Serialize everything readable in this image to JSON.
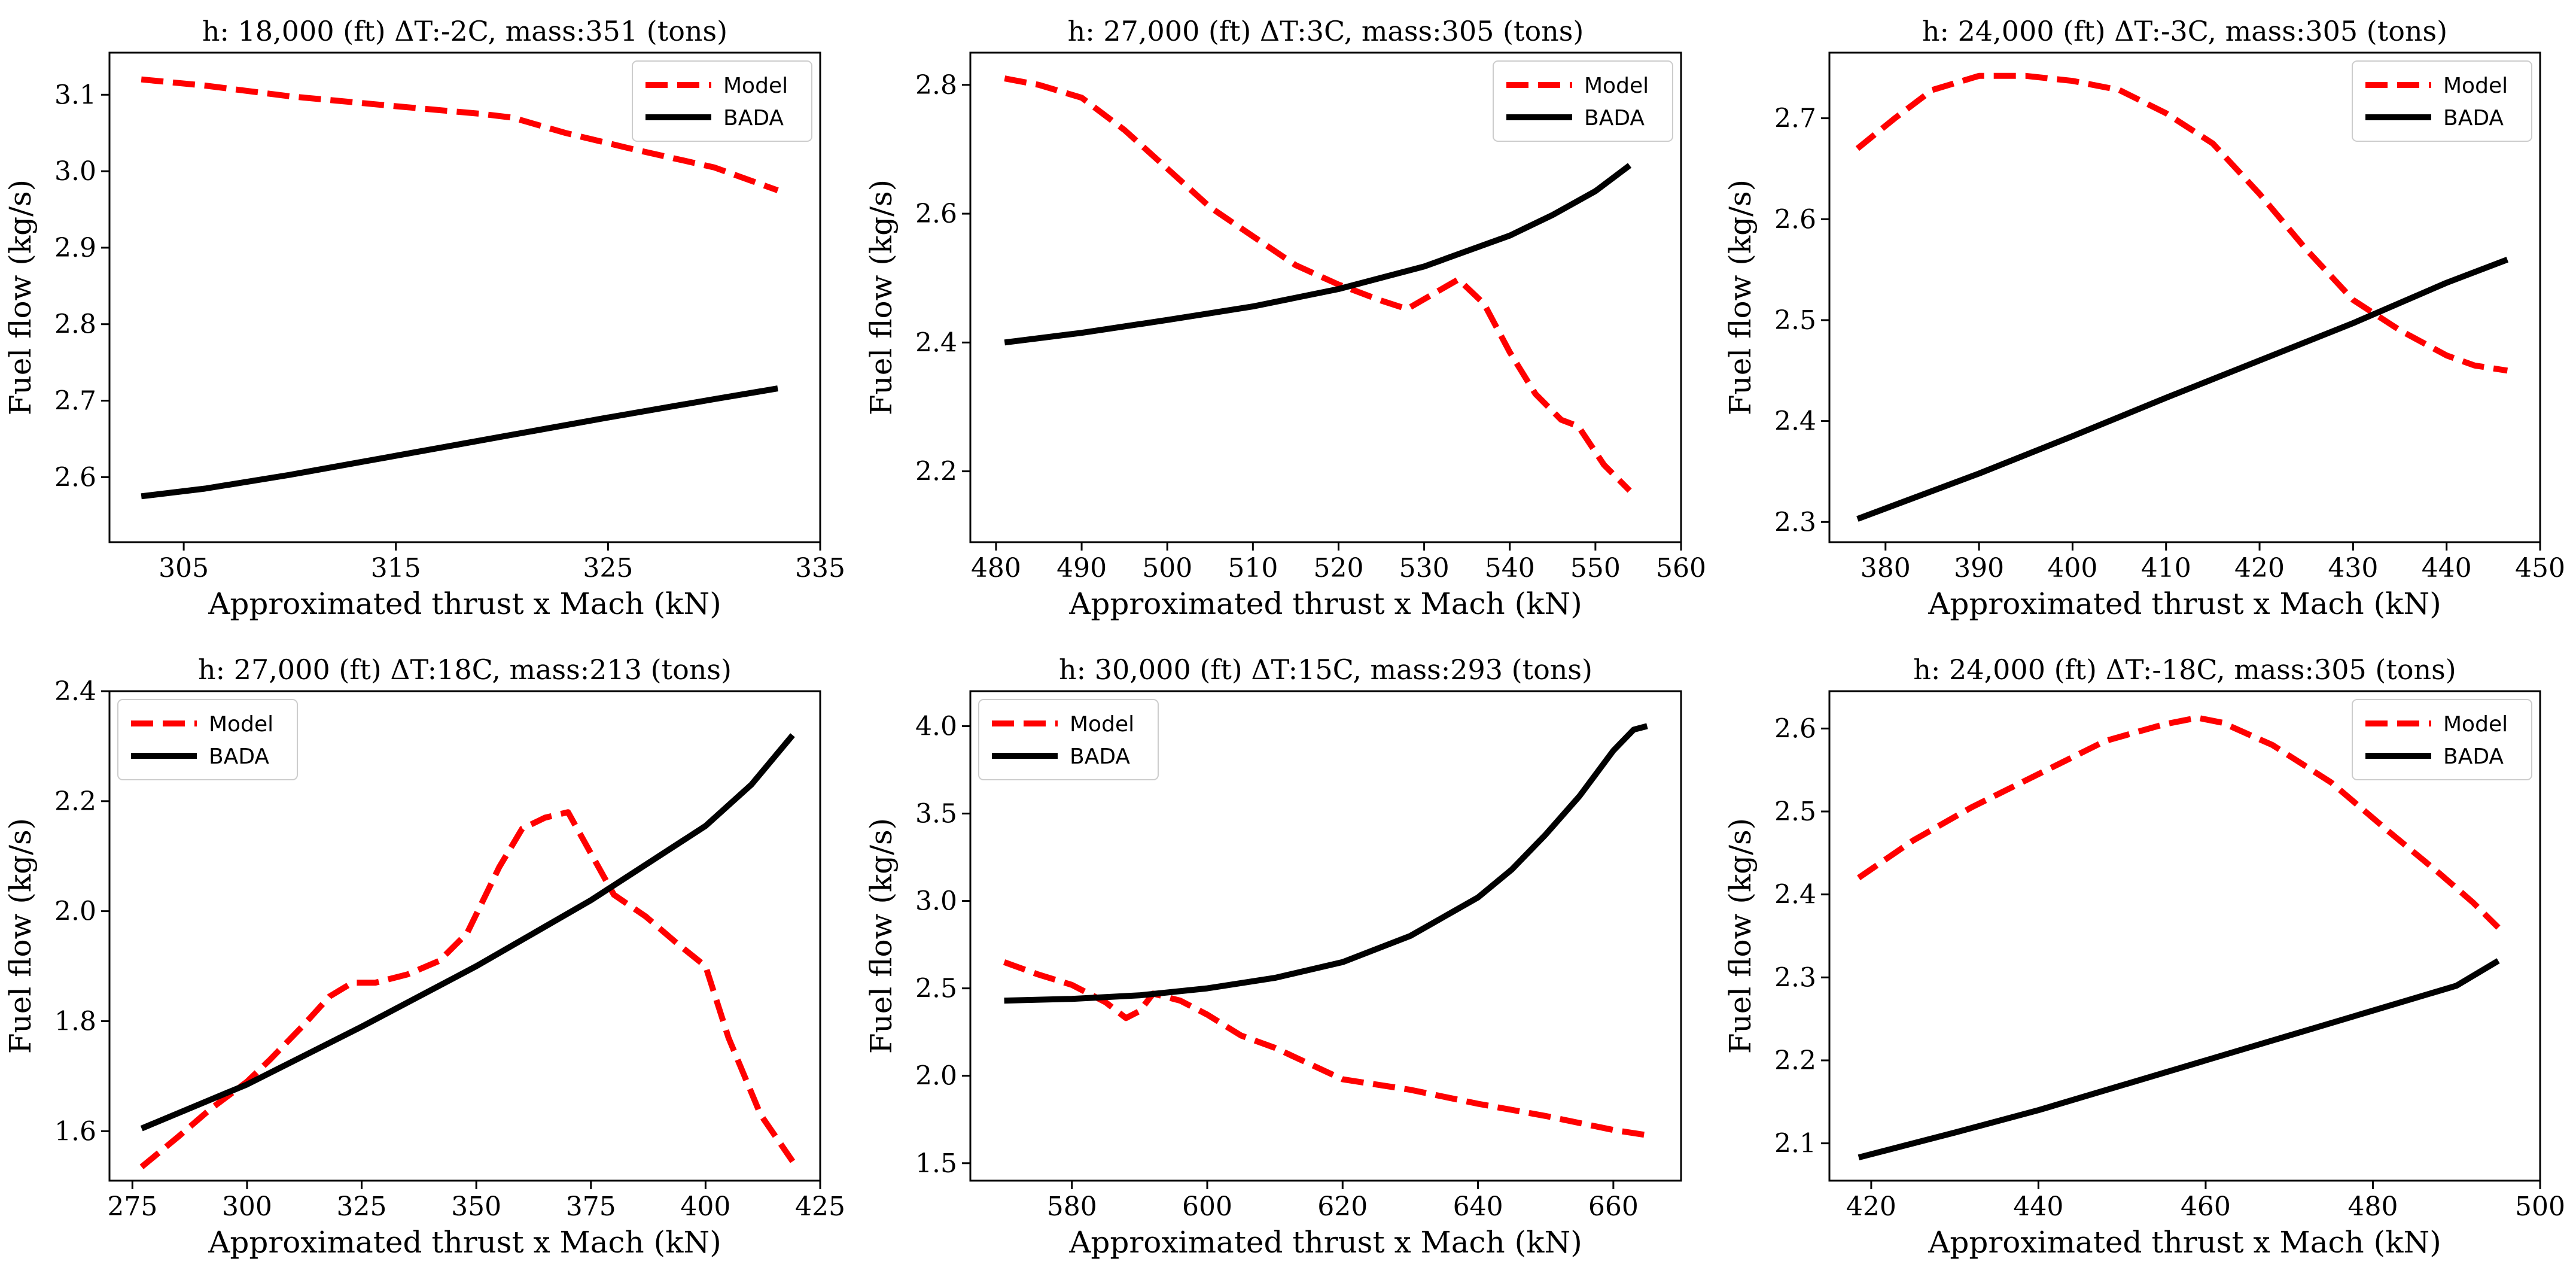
{
  "figure": {
    "background": "#ffffff"
  },
  "styles": {
    "model_color": "#ff0000",
    "bada_color": "#000000"
  },
  "chart_data": [
    {
      "type": "line",
      "title": "h: 18,000 (ft) ΔT:-2C, mass:351 (tons)",
      "xlabel": "Approximated thrust x Mach (kN)",
      "ylabel": "Fuel flow (kg/s)",
      "xlim": [
        301.5,
        335
      ],
      "ylim": [
        2.515,
        3.155
      ],
      "xticks": [
        305,
        315,
        325,
        335
      ],
      "xtick_labels": [
        "305",
        "315",
        "325",
        "335"
      ],
      "yticks": [
        2.6,
        2.7,
        2.8,
        2.9,
        3.0,
        3.1
      ],
      "ytick_labels": [
        "2.6",
        "2.7",
        "2.8",
        "2.9",
        "3.0",
        "3.1"
      ],
      "legend": {
        "location": "top-right",
        "entries": [
          "Model",
          "BADA"
        ]
      },
      "series": [
        {
          "name": "Model",
          "style": "dashed",
          "x": [
            303,
            306,
            310,
            315,
            319,
            320.5,
            323,
            326,
            330,
            332,
            333
          ],
          "y": [
            3.12,
            3.112,
            3.098,
            3.085,
            3.075,
            3.07,
            3.05,
            3.03,
            3.005,
            2.985,
            2.975
          ]
        },
        {
          "name": "BADA",
          "style": "solid",
          "x": [
            303,
            306,
            310,
            315,
            320,
            325,
            330,
            333
          ],
          "y": [
            2.575,
            2.585,
            2.603,
            2.628,
            2.653,
            2.678,
            2.702,
            2.716
          ]
        }
      ]
    },
    {
      "type": "line",
      "title": "h: 27,000 (ft) ΔT:3C, mass:305 (tons)",
      "xlabel": "Approximated thrust x Mach (kN)",
      "ylabel": "Fuel flow (kg/s)",
      "xlim": [
        477,
        560
      ],
      "ylim": [
        2.09,
        2.85
      ],
      "xticks": [
        480,
        490,
        500,
        510,
        520,
        530,
        540,
        550,
        560
      ],
      "xtick_labels": [
        "480",
        "490",
        "500",
        "510",
        "520",
        "530",
        "540",
        "550",
        "560"
      ],
      "yticks": [
        2.2,
        2.4,
        2.6,
        2.8
      ],
      "ytick_labels": [
        "2.2",
        "2.4",
        "2.6",
        "2.8"
      ],
      "legend": {
        "location": "top-right",
        "entries": [
          "Model",
          "BADA"
        ]
      },
      "series": [
        {
          "name": "Model",
          "style": "dashed",
          "x": [
            481,
            485,
            490,
            495,
            500,
            505,
            510,
            515,
            520,
            525,
            528,
            531,
            534,
            537,
            540,
            543,
            546,
            548,
            551,
            554
          ],
          "y": [
            2.81,
            2.8,
            2.78,
            2.73,
            2.67,
            2.61,
            2.565,
            2.52,
            2.49,
            2.465,
            2.452,
            2.475,
            2.498,
            2.46,
            2.385,
            2.32,
            2.28,
            2.27,
            2.21,
            2.17
          ]
        },
        {
          "name": "BADA",
          "style": "solid",
          "x": [
            481,
            490,
            500,
            510,
            520,
            530,
            540,
            545,
            550,
            554
          ],
          "y": [
            2.4,
            2.415,
            2.435,
            2.456,
            2.483,
            2.518,
            2.566,
            2.598,
            2.635,
            2.675
          ]
        }
      ]
    },
    {
      "type": "line",
      "title": "h: 24,000 (ft) ΔT:-3C, mass:305 (tons)",
      "xlabel": "Approximated thrust x Mach (kN)",
      "ylabel": "Fuel flow (kg/s)",
      "xlim": [
        374,
        450
      ],
      "ylim": [
        2.28,
        2.765
      ],
      "xticks": [
        380,
        390,
        400,
        410,
        420,
        430,
        440,
        450
      ],
      "xtick_labels": [
        "380",
        "390",
        "400",
        "410",
        "420",
        "430",
        "440",
        "450"
      ],
      "yticks": [
        2.3,
        2.4,
        2.5,
        2.6,
        2.7
      ],
      "ytick_labels": [
        "2.3",
        "2.4",
        "2.5",
        "2.6",
        "2.7"
      ],
      "legend": {
        "location": "top-right",
        "entries": [
          "Model",
          "BADA"
        ]
      },
      "series": [
        {
          "name": "Model",
          "style": "dashed",
          "x": [
            377,
            381,
            385,
            390,
            395,
            400,
            405,
            410,
            415,
            420,
            425,
            430,
            435,
            440,
            443,
            446.5
          ],
          "y": [
            2.67,
            2.7,
            2.728,
            2.742,
            2.742,
            2.737,
            2.728,
            2.705,
            2.675,
            2.625,
            2.57,
            2.52,
            2.49,
            2.465,
            2.455,
            2.45
          ]
        },
        {
          "name": "BADA",
          "style": "solid",
          "x": [
            377,
            390,
            400,
            410,
            420,
            430,
            440,
            446.5
          ],
          "y": [
            2.303,
            2.348,
            2.385,
            2.423,
            2.46,
            2.497,
            2.537,
            2.56
          ]
        }
      ]
    },
    {
      "type": "line",
      "title": "h: 27,000 (ft) ΔT:18C, mass:213 (tons)",
      "xlabel": "Approximated thrust x Mach (kN)",
      "ylabel": "Fuel flow (kg/s)",
      "xlim": [
        270,
        425
      ],
      "ylim": [
        1.51,
        2.4
      ],
      "xticks": [
        275,
        300,
        325,
        350,
        375,
        400,
        425
      ],
      "xtick_labels": [
        "275",
        "300",
        "325",
        "350",
        "375",
        "400",
        "425"
      ],
      "yticks": [
        1.6,
        1.8,
        2.0,
        2.2,
        2.4
      ],
      "ytick_labels": [
        "1.6",
        "1.8",
        "2.0",
        "2.2",
        "2.4"
      ],
      "legend": {
        "location": "top-left",
        "entries": [
          "Model",
          "BADA"
        ]
      },
      "series": [
        {
          "name": "Model",
          "style": "dashed",
          "x": [
            277,
            285,
            292,
            300,
            305,
            312,
            318,
            323,
            328,
            335,
            342,
            348,
            355,
            360,
            365,
            370,
            374,
            380,
            387,
            394,
            400,
            405,
            412,
            419
          ],
          "y": [
            1.535,
            1.59,
            1.64,
            1.69,
            1.73,
            1.79,
            1.845,
            1.87,
            1.87,
            1.885,
            1.91,
            1.96,
            2.08,
            2.15,
            2.17,
            2.18,
            2.12,
            2.03,
            1.99,
            1.94,
            1.9,
            1.77,
            1.63,
            1.545
          ]
        },
        {
          "name": "BADA",
          "style": "solid",
          "x": [
            277,
            300,
            325,
            350,
            375,
            400,
            410,
            419
          ],
          "y": [
            1.605,
            1.685,
            1.79,
            1.9,
            2.02,
            2.155,
            2.23,
            2.32
          ]
        }
      ]
    },
    {
      "type": "line",
      "title": "h: 30,000 (ft) ΔT:15C, mass:293 (tons)",
      "xlabel": "Approximated thrust x Mach (kN)",
      "ylabel": "Fuel flow (kg/s)",
      "xlim": [
        565,
        670
      ],
      "ylim": [
        1.4,
        4.2
      ],
      "xticks": [
        580,
        600,
        620,
        640,
        660
      ],
      "xtick_labels": [
        "580",
        "600",
        "620",
        "640",
        "660"
      ],
      "yticks": [
        1.5,
        2.0,
        2.5,
        3.0,
        3.5,
        4.0
      ],
      "ytick_labels": [
        "1.5",
        "2.0",
        "2.5",
        "3.0",
        "3.5",
        "4.0"
      ],
      "legend": {
        "location": "top-left",
        "entries": [
          "Model",
          "BADA"
        ]
      },
      "series": [
        {
          "name": "Model",
          "style": "dashed",
          "x": [
            570,
            575,
            580,
            585,
            588,
            590,
            592,
            596,
            600,
            605,
            610,
            615,
            620,
            630,
            640,
            650,
            660,
            665
          ],
          "y": [
            2.65,
            2.58,
            2.52,
            2.42,
            2.33,
            2.37,
            2.47,
            2.43,
            2.35,
            2.23,
            2.16,
            2.07,
            1.98,
            1.92,
            1.84,
            1.77,
            1.69,
            1.66
          ]
        },
        {
          "name": "BADA",
          "style": "solid",
          "x": [
            570,
            580,
            590,
            600,
            610,
            620,
            630,
            640,
            645,
            650,
            655,
            660,
            663,
            665
          ],
          "y": [
            2.43,
            2.44,
            2.46,
            2.5,
            2.56,
            2.65,
            2.8,
            3.02,
            3.18,
            3.38,
            3.6,
            3.86,
            3.98,
            4.0
          ]
        }
      ]
    },
    {
      "type": "line",
      "title": "h: 24,000 (ft) ΔT:-18C, mass:305 (tons)",
      "xlabel": "Approximated thrust x Mach (kN)",
      "ylabel": "Fuel flow (kg/s)",
      "xlim": [
        415,
        500
      ],
      "ylim": [
        2.055,
        2.645
      ],
      "xticks": [
        420,
        440,
        460,
        480,
        500
      ],
      "xtick_labels": [
        "420",
        "440",
        "460",
        "480",
        "500"
      ],
      "yticks": [
        2.1,
        2.2,
        2.3,
        2.4,
        2.5,
        2.6
      ],
      "ytick_labels": [
        "2.1",
        "2.2",
        "2.3",
        "2.4",
        "2.5",
        "2.6"
      ],
      "legend": {
        "location": "top-right",
        "entries": [
          "Model",
          "BADA"
        ]
      },
      "series": [
        {
          "name": "Model",
          "style": "dashed",
          "x": [
            418.5,
            425,
            432,
            440,
            448,
            455,
            459,
            462,
            468,
            475,
            482,
            488,
            492,
            495
          ],
          "y": [
            2.42,
            2.465,
            2.505,
            2.545,
            2.585,
            2.605,
            2.613,
            2.607,
            2.58,
            2.535,
            2.475,
            2.425,
            2.39,
            2.36
          ]
        },
        {
          "name": "BADA",
          "style": "solid",
          "x": [
            418.5,
            430,
            440,
            450,
            460,
            470,
            480,
            490,
            495
          ],
          "y": [
            2.083,
            2.113,
            2.14,
            2.17,
            2.2,
            2.23,
            2.26,
            2.29,
            2.32
          ]
        }
      ]
    }
  ]
}
